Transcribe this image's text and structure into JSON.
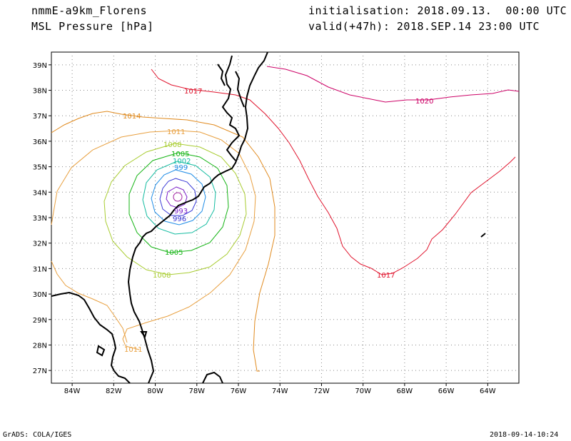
{
  "header": {
    "model": "nmmE-a9km_Florens",
    "field": "MSL Pressure [hPa]",
    "init": "initialisation: 2018.09.13.  00:00 UTC",
    "valid": "valid(+47h): 2018.SEP.14 23:00 UTC"
  },
  "footer": {
    "left": "GrADS: COLA/IGES",
    "right": "2018-09-14-10:24"
  },
  "map": {
    "lat_labels": [
      "39N",
      "38N",
      "37N",
      "36N",
      "35N",
      "34N",
      "33N",
      "32N",
      "31N",
      "30N",
      "29N",
      "28N",
      "27N"
    ],
    "lon_labels": [
      "84W",
      "82W",
      "80W",
      "78W",
      "76W",
      "74W",
      "72W",
      "70W",
      "68W",
      "66W",
      "64W"
    ],
    "lat_values": [
      39,
      38,
      37,
      36,
      35,
      34,
      33,
      32,
      31,
      30,
      29,
      28,
      27
    ],
    "lon_values": [
      -84,
      -82,
      -80,
      -78,
      -76,
      -74,
      -72,
      -70,
      -68,
      -66,
      -64
    ],
    "lat_range": [
      26.5,
      39.5
    ],
    "lon_range": [
      -85,
      -62.5
    ],
    "cyclone_center": {
      "lon": -79.1,
      "lat": 33.85
    },
    "contours": [
      {
        "level": "1020",
        "color": "#cc0066"
      },
      {
        "level": "1017",
        "color": "#e0142d"
      },
      {
        "level": "1014",
        "color": "#e08a1e"
      },
      {
        "level": "1011",
        "color": "#e8a040"
      },
      {
        "level": "1008",
        "color": "#a8cc30"
      },
      {
        "level": "1005",
        "color": "#14b414"
      },
      {
        "level": "1002",
        "color": "#12bba0"
      },
      {
        "level": "999",
        "color": "#1e8ce6"
      },
      {
        "level": "996",
        "color": "#3a3ad6"
      },
      {
        "level": "993",
        "color": "#7a1ec8"
      }
    ]
  }
}
